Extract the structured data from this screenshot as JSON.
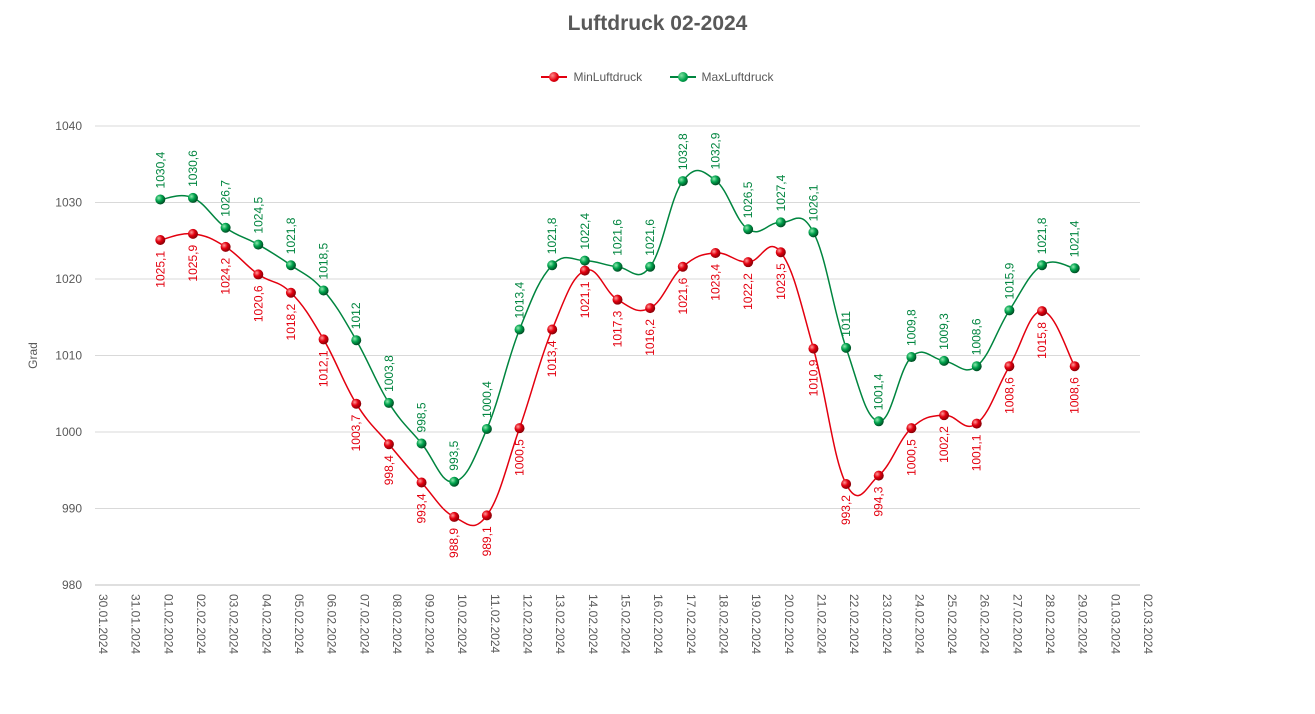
{
  "chart_data": {
    "type": "line",
    "title": "Luftdruck 02-2024",
    "xlabel": "",
    "ylabel": "Grad",
    "ylim": [
      980,
      1040
    ],
    "yticks": [
      980,
      990,
      1000,
      1010,
      1020,
      1030,
      1040
    ],
    "grid": true,
    "legend": "top-center",
    "categories": [
      "30.01.2024",
      "31.01.2024",
      "01.02.2024",
      "02.02.2024",
      "03.02.2024",
      "04.02.2024",
      "05.02.2024",
      "06.02.2024",
      "07.02.2024",
      "08.02.2024",
      "09.02.2024",
      "10.02.2024",
      "11.02.2024",
      "12.02.2024",
      "13.02.2024",
      "14.02.2024",
      "15.02.2024",
      "16.02.2024",
      "17.02.2024",
      "18.02.2024",
      "19.02.2024",
      "20.02.2024",
      "21.02.2024",
      "22.02.2024",
      "23.02.2024",
      "24.02.2024",
      "25.02.2024",
      "26.02.2024",
      "27.02.2024",
      "28.02.2024",
      "29.02.2024",
      "01.03.2024",
      "02.03.2024"
    ],
    "series": [
      {
        "name": "MinLuftdruck",
        "color": "#e3000f",
        "values": [
          null,
          null,
          1025.1,
          1025.9,
          1024.2,
          1020.6,
          1018.2,
          1012.1,
          1003.7,
          998.4,
          993.4,
          988.9,
          989.1,
          1000.5,
          1013.4,
          1021.1,
          1017.3,
          1016.2,
          1021.6,
          1023.4,
          1022.2,
          1023.5,
          1010.9,
          993.2,
          994.3,
          1000.5,
          1002.2,
          1001.1,
          1008.6,
          1015.8,
          1008.6,
          null,
          null
        ],
        "labels": [
          null,
          null,
          "1025,1",
          "1025,9",
          "1024,2",
          "1020,6",
          "1018,2",
          "1012,1",
          "1003,7",
          "998,4",
          "993,4",
          "988,9",
          "989,1",
          "1000,5",
          "1013,4",
          "1021,1",
          "1017,3",
          "1016,2",
          "1021,6",
          "1023,4",
          "1022,2",
          "1023,5",
          "1010,9",
          "993,2",
          "994,3",
          "1000,5",
          "1002,2",
          "1001,1",
          "1008,6",
          "1015,8",
          "1008,6",
          null,
          null
        ]
      },
      {
        "name": "MaxLuftdruck",
        "color": "#00853f",
        "values": [
          null,
          null,
          1030.4,
          1030.6,
          1026.7,
          1024.5,
          1021.8,
          1018.5,
          1012,
          1003.8,
          998.5,
          993.5,
          1000.4,
          1013.4,
          1021.8,
          1022.4,
          1021.6,
          1021.6,
          1032.8,
          1032.9,
          1026.5,
          1027.4,
          1026.1,
          1011,
          1001.4,
          1009.8,
          1009.3,
          1008.6,
          1015.9,
          1021.8,
          1021.4,
          null,
          null
        ],
        "labels": [
          null,
          null,
          "1030,4",
          "1030,6",
          "1026,7",
          "1024,5",
          "1021,8",
          "1018,5",
          "1012",
          "1003,8",
          "998,5",
          "993,5",
          "1000,4",
          "1013,4",
          "1021,8",
          "1022,4",
          "1021,6",
          "1021,6",
          "1032,8",
          "1032,9",
          "1026,5",
          "1027,4",
          "1026,1",
          "1011",
          "1001,4",
          "1009,8",
          "1009,3",
          "1008,6",
          "1015,9",
          "1021,8",
          "1021,4",
          null,
          null
        ]
      }
    ]
  }
}
